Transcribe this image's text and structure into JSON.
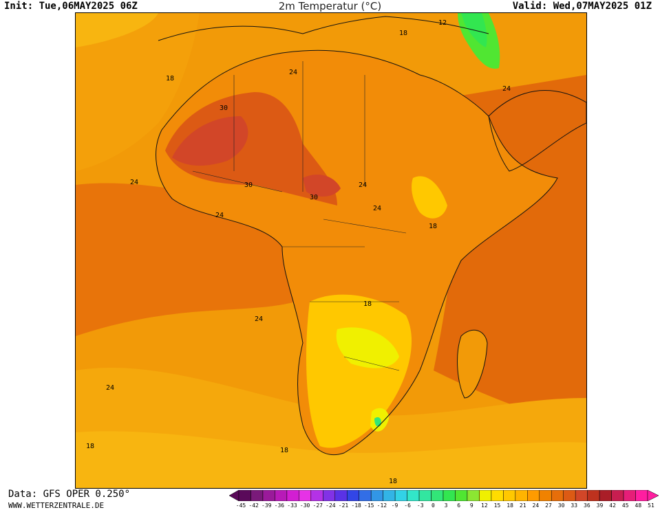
{
  "header": {
    "init": "Init: Tue,06MAY2025 06Z",
    "title": "2m Temperatur (°C)",
    "valid": "Valid: Wed,07MAY2025 01Z"
  },
  "footer": {
    "data_source": "Data: GFS OPER 0.250°",
    "website": "WWW.WETTERZENTRALE.DE"
  },
  "map": {
    "region": "Africa",
    "variable": "2m temperature",
    "contour_labels": [
      "18",
      "12",
      "18",
      "24",
      "24",
      "30",
      "24",
      "30",
      "30",
      "24",
      "24",
      "24",
      "18",
      "18",
      "24",
      "24",
      "18",
      "18",
      "18"
    ]
  },
  "colorbar": {
    "ticks": [
      "-45",
      "-42",
      "-39",
      "-36",
      "-33",
      "-30",
      "-27",
      "-24",
      "-21",
      "-18",
      "-15",
      "-12",
      "-9",
      "-6",
      "-3",
      "0",
      "3",
      "6",
      "9",
      "12",
      "15",
      "18",
      "21",
      "24",
      "27",
      "30",
      "33",
      "36",
      "39",
      "42",
      "45",
      "48",
      "51"
    ],
    "colors": [
      "#5a0a5a",
      "#7a1a7a",
      "#9a1a9a",
      "#b81ab8",
      "#d21ed2",
      "#e632e6",
      "#b432e6",
      "#8232e6",
      "#5a32e6",
      "#3246e6",
      "#326ee6",
      "#3296e6",
      "#32b4e6",
      "#32d2e6",
      "#32e6c8",
      "#32e6a0",
      "#32e678",
      "#32e650",
      "#50e632",
      "#8ce632",
      "#f0f000",
      "#ffdc00",
      "#ffc800",
      "#ffb400",
      "#ff9b00",
      "#f08200",
      "#e66e0a",
      "#dc5a14",
      "#d24628",
      "#be321e",
      "#aa1e28",
      "#c81e50",
      "#e61e78",
      "#ff1ea0"
    ]
  }
}
